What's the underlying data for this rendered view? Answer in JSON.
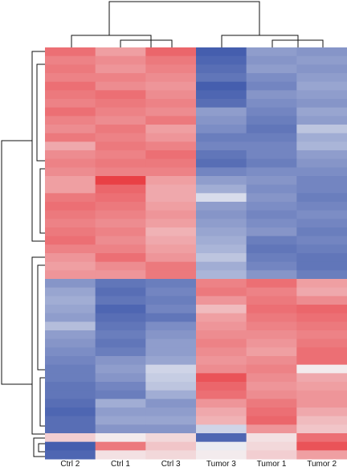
{
  "chart_data": {
    "type": "heatmap",
    "title": "",
    "xlabel": "",
    "ylabel": "",
    "columns": [
      "Ctrl 2",
      "Ctrl 1",
      "Ctrl 3",
      "Tumor 3",
      "Tumor 1",
      "Tumor 2"
    ],
    "color_scale": {
      "low": "#3c56aa",
      "mid": "#f4f4f6",
      "high": "#e8363c",
      "range": [
        -1,
        1
      ]
    },
    "row_dendrogram": true,
    "column_dendrogram": true,
    "rows": [
      [
        0.7,
        0.45,
        0.75,
        -0.95,
        -0.55,
        -0.6
      ],
      [
        0.6,
        0.55,
        0.65,
        -0.9,
        -0.6,
        -0.55
      ],
      [
        0.65,
        0.5,
        0.6,
        -0.85,
        -0.55,
        -0.6
      ],
      [
        0.6,
        0.6,
        0.55,
        -0.8,
        -0.65,
        -0.55
      ],
      [
        0.7,
        0.55,
        0.5,
        -0.95,
        -0.7,
        -0.5
      ],
      [
        0.65,
        0.7,
        0.55,
        -0.9,
        -0.6,
        -0.55
      ],
      [
        0.6,
        0.65,
        0.6,
        -0.85,
        -0.65,
        -0.6
      ],
      [
        0.7,
        0.6,
        0.55,
        -0.55,
        -0.7,
        -0.5
      ],
      [
        0.6,
        0.55,
        0.65,
        -0.6,
        -0.75,
        -0.55
      ],
      [
        0.55,
        0.65,
        0.45,
        -0.65,
        -0.8,
        -0.3
      ],
      [
        0.65,
        0.6,
        0.5,
        -0.75,
        -0.75,
        -0.45
      ],
      [
        0.4,
        0.65,
        0.6,
        -0.7,
        -0.7,
        -0.4
      ],
      [
        0.55,
        0.6,
        0.7,
        -0.8,
        -0.7,
        -0.55
      ],
      [
        0.6,
        0.65,
        0.65,
        -0.85,
        -0.75,
        -0.6
      ],
      [
        0.55,
        0.6,
        0.6,
        -0.7,
        -0.65,
        -0.65
      ],
      [
        0.45,
        0.95,
        0.45,
        -0.55,
        -0.6,
        -0.7
      ],
      [
        0.45,
        0.75,
        0.4,
        -0.45,
        -0.65,
        -0.7
      ],
      [
        0.65,
        0.7,
        0.4,
        -0.15,
        -0.6,
        -0.75
      ],
      [
        0.7,
        0.65,
        0.45,
        -0.55,
        -0.65,
        -0.7
      ],
      [
        0.65,
        0.6,
        0.5,
        -0.6,
        -0.7,
        -0.65
      ],
      [
        0.6,
        0.55,
        0.45,
        -0.55,
        -0.65,
        -0.7
      ],
      [
        0.65,
        0.6,
        0.35,
        -0.5,
        -0.6,
        -0.75
      ],
      [
        0.7,
        0.55,
        0.4,
        -0.45,
        -0.75,
        -0.7
      ],
      [
        0.6,
        0.6,
        0.45,
        -0.4,
        -0.8,
        -0.75
      ],
      [
        0.5,
        0.7,
        0.5,
        -0.3,
        -0.75,
        -0.8
      ],
      [
        0.45,
        0.55,
        0.65,
        -0.45,
        -0.7,
        -0.8
      ],
      [
        0.5,
        0.5,
        0.65,
        -0.4,
        -0.6,
        -0.75
      ],
      [
        -0.6,
        -0.8,
        -0.75,
        0.6,
        0.7,
        0.45
      ],
      [
        -0.5,
        -0.85,
        -0.7,
        0.65,
        0.6,
        0.4
      ],
      [
        -0.45,
        -0.8,
        -0.75,
        0.5,
        0.65,
        0.55
      ],
      [
        -0.5,
        -0.9,
        -0.7,
        0.3,
        0.7,
        0.75
      ],
      [
        -0.55,
        -0.85,
        -0.8,
        0.45,
        0.65,
        0.7
      ],
      [
        -0.35,
        -0.8,
        -0.65,
        0.5,
        0.6,
        0.65
      ],
      [
        -0.55,
        -0.75,
        -0.6,
        0.55,
        0.55,
        0.6
      ],
      [
        -0.6,
        -0.8,
        -0.55,
        0.6,
        0.5,
        0.65
      ],
      [
        -0.65,
        -0.75,
        -0.55,
        0.55,
        0.45,
        0.7
      ],
      [
        -0.7,
        -0.6,
        -0.5,
        0.5,
        0.55,
        0.7
      ],
      [
        -0.75,
        -0.55,
        -0.2,
        0.55,
        0.6,
        0.05
      ],
      [
        -0.75,
        -0.6,
        -0.25,
        0.85,
        0.55,
        0.4
      ],
      [
        -0.8,
        -0.7,
        -0.3,
        0.75,
        0.5,
        0.45
      ],
      [
        -0.8,
        -0.75,
        -0.45,
        0.7,
        0.55,
        0.5
      ],
      [
        -0.85,
        -0.45,
        -0.6,
        0.5,
        0.65,
        0.5
      ],
      [
        -0.9,
        -0.55,
        -0.55,
        0.4,
        0.7,
        0.4
      ],
      [
        -0.85,
        -0.5,
        -0.5,
        0.35,
        0.75,
        0.3
      ],
      [
        -0.85,
        -0.6,
        -0.6,
        -0.2,
        0.5,
        0.25
      ],
      [
        0.2,
        0.05,
        0.15,
        -0.9,
        0.1,
        0.7
      ],
      [
        -0.95,
        0.65,
        0.25,
        -0.05,
        0.15,
        0.85
      ],
      [
        -0.9,
        0.1,
        0.15,
        0.05,
        0.2,
        0.45
      ]
    ]
  }
}
